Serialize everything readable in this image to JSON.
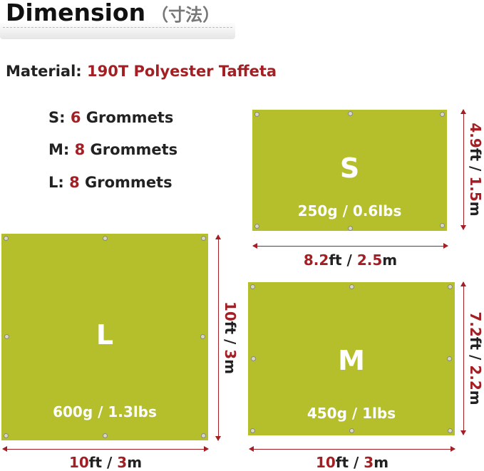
{
  "header": {
    "title": "Dimension",
    "title_jp": "（寸法）"
  },
  "material": {
    "label": "Material:",
    "value": "190T Polyester Taffeta"
  },
  "grommets": [
    {
      "size": "S:",
      "count": "6",
      "label": "Grommets"
    },
    {
      "size": "M:",
      "count": "8",
      "label": "Grommets"
    },
    {
      "size": "L:",
      "count": "8",
      "label": "Grommets"
    }
  ],
  "tarps": {
    "s": {
      "size": "S",
      "weight": "250g / 0.6lbs",
      "width_ft": "8.2",
      "width_sep": "ft / ",
      "width_m": "2.5",
      "width_unit": "m",
      "height_ft": "4.9",
      "height_sep": "ft / ",
      "height_m": "1.5",
      "height_unit": "m"
    },
    "l": {
      "size": "L",
      "weight": "600g / 1.3lbs",
      "width_ft": "10",
      "width_sep": "ft / ",
      "width_m": "3",
      "width_unit": "m",
      "height_ft": "10",
      "height_sep": "ft / ",
      "height_m": "3",
      "height_unit": "m"
    },
    "m": {
      "size": "M",
      "weight": "450g / 1lbs",
      "width_ft": "10",
      "width_sep": "ft / ",
      "width_m": "3",
      "width_unit": "m",
      "height_ft": "7.2",
      "height_sep": "ft / ",
      "height_m": "2.2",
      "height_unit": "m"
    }
  },
  "colors": {
    "tarp": "#b5bf2c",
    "accent": "#a31f24"
  }
}
